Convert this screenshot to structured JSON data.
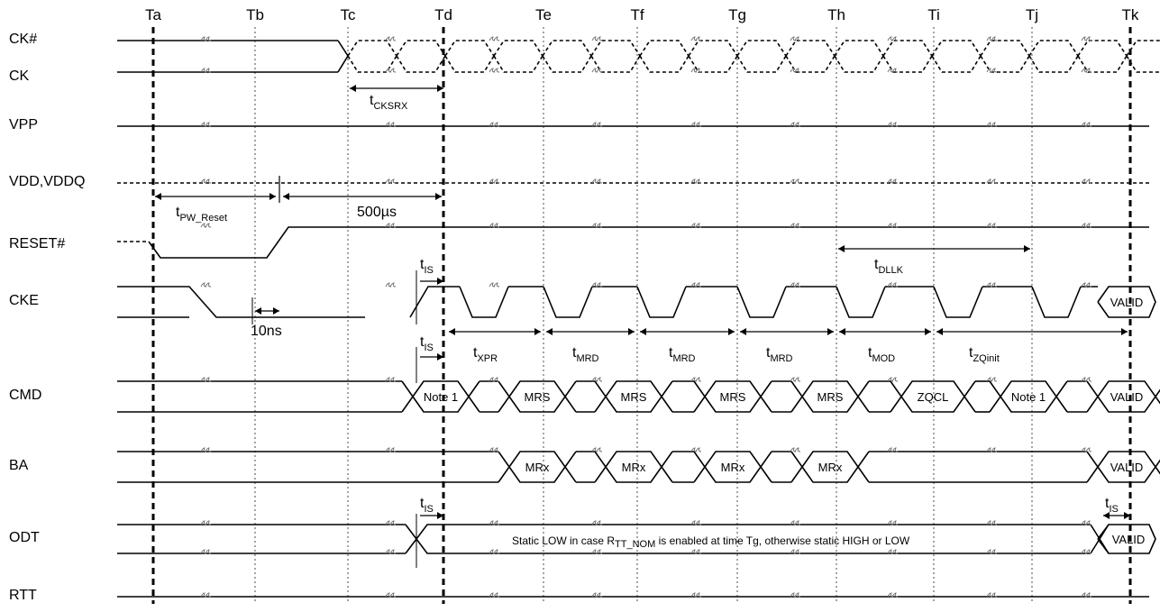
{
  "time_markers": [
    "Ta",
    "Tb",
    "Tc",
    "Td",
    "Te",
    "Tf",
    "Tg",
    "Th",
    "Ti",
    "Tj",
    "Tk"
  ],
  "signals": [
    "CK#",
    "CK",
    "VPP",
    "VDD,VDDQ",
    "RESET#",
    "CKE",
    "CMD",
    "BA",
    "ODT",
    "RTT"
  ],
  "timing": {
    "tcksrx": {
      "main": "t",
      "sub": "CKSRX"
    },
    "tpw_reset": {
      "main": "t",
      "sub": "PW_Reset"
    },
    "t500": "500µs",
    "tis": {
      "main": "t",
      "sub": "IS"
    },
    "t10ns": "10ns",
    "tdllk": {
      "main": "t",
      "sub": "DLLK"
    },
    "txpr": {
      "main": "t",
      "sub": "XPR"
    },
    "tmrd": {
      "main": "t",
      "sub": "MRD"
    },
    "tmod": {
      "main": "t",
      "sub": "MOD"
    },
    "tzqinit": {
      "main": "t",
      "sub": "ZQinit"
    }
  },
  "commands": {
    "cmd": [
      "Note 1",
      "MRS",
      "MRS",
      "MRS",
      "MRS",
      "ZQCL",
      "Note 1",
      "VALID"
    ],
    "ba": [
      "MRx",
      "MRx",
      "MRx",
      "MRx",
      "VALID"
    ],
    "cke_valid": "VALID",
    "odt_valid": "VALID"
  },
  "odt_note": {
    "pre": "Static LOW in case R",
    "sub": "TT_NOM",
    "post": " is enabled at time Tg, otherwise static HIGH or LOW"
  }
}
